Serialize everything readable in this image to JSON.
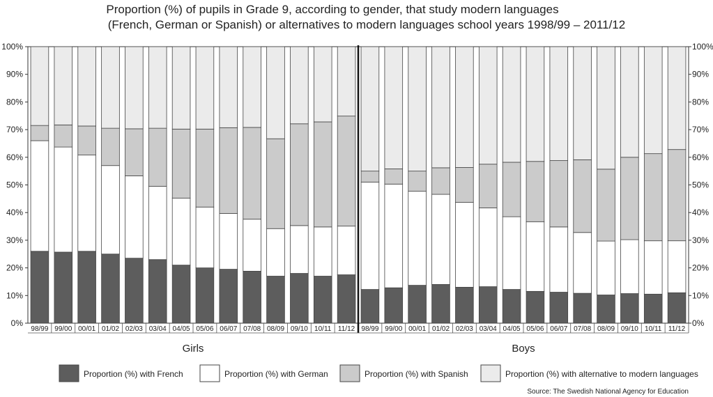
{
  "chart_data": {
    "type": "bar",
    "stacked": true,
    "title_line1": "Proportion (%) of pupils in Grade 9, according to gender, that study modern languages",
    "title_line2": "(French, German or Spanish) or alternatives to modern languages school years 1998/99 – 2011/12",
    "source": "Source: The Swedish National Agency for Education",
    "ylim": [
      0,
      100
    ],
    "yticks": [
      "0%",
      "10%",
      "20%",
      "30%",
      "40%",
      "50%",
      "60%",
      "70%",
      "80%",
      "90%",
      "100%"
    ],
    "categories": [
      "98/99",
      "99/00",
      "00/01",
      "01/02",
      "02/03",
      "03/04",
      "04/05",
      "05/06",
      "06/07",
      "07/08",
      "08/09",
      "09/10",
      "10/11",
      "11/12"
    ],
    "legend_position": "bottom",
    "series_meta": [
      {
        "name": "Proportion (%) with French",
        "color": "#5d5d5d"
      },
      {
        "name": "Proportion (%) with German",
        "color": "#ffffff"
      },
      {
        "name": "Proportion (%) with Spanish",
        "color": "#cbcbcb"
      },
      {
        "name": "Proportion (%) with alternative to modern languages",
        "color": "#ebebeb"
      }
    ],
    "groups": [
      {
        "label": "Girls",
        "series": [
          {
            "name": "Proportion (%) with French",
            "values": [
              26,
              25.7,
              26,
              25,
              23.5,
              23,
              21,
              20,
              19.5,
              18.8,
              17,
              18,
              17,
              17.5
            ]
          },
          {
            "name": "Proportion (%) with German",
            "values": [
              40,
              38,
              34.8,
              32,
              29.8,
              26.5,
              24.2,
              22,
              20.2,
              18.8,
              17.2,
              17.3,
              17.8,
              17.6
            ]
          },
          {
            "name": "Proportion (%) with Spanish",
            "values": [
              5.5,
              8,
              10.5,
              13.5,
              17,
              21,
              25,
              28.2,
              31,
              33.2,
              32.5,
              36.8,
              38,
              39.8
            ]
          },
          {
            "name": "Proportion (%) with alternative to modern languages",
            "values": [
              28.5,
              28.3,
              28.7,
              29.5,
              29.7,
              29.5,
              29.8,
              29.8,
              29.3,
              29.2,
              33.3,
              27.9,
              27.2,
              25.1
            ]
          }
        ]
      },
      {
        "label": "Boys",
        "series": [
          {
            "name": "Proportion (%) with French",
            "values": [
              12.2,
              12.8,
              13.7,
              14,
              13,
              13.2,
              12.2,
              11.5,
              11.2,
              10.8,
              10.2,
              10.7,
              10.5,
              11
            ]
          },
          {
            "name": "Proportion (%) with German",
            "values": [
              38.8,
              37.5,
              34,
              32.6,
              30.7,
              28.5,
              26.3,
              25.2,
              23.6,
              22,
              19.5,
              19.5,
              19.3,
              18.8
            ]
          },
          {
            "name": "Proportion (%) with Spanish",
            "values": [
              4,
              5.5,
              7.3,
              9.6,
              12.6,
              15.8,
              19.7,
              21.8,
              24,
              26.3,
              26,
              29.8,
              31.5,
              33
            ]
          },
          {
            "name": "Proportion (%) with alternative to modern languages",
            "values": [
              45,
              44.2,
              45,
              43.8,
              43.7,
              42.5,
              41.8,
              41.5,
              41.2,
              40.9,
              44.3,
              40,
              38.7,
              37.2
            ]
          }
        ]
      }
    ]
  }
}
